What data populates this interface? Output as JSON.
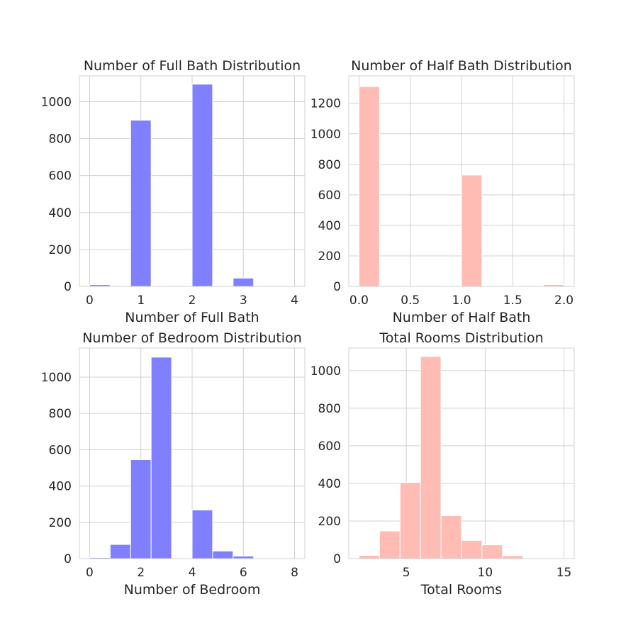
{
  "chart_data": [
    {
      "type": "bar",
      "title": "Number of Full Bath Distribution",
      "xlabel": "Number of Full Bath",
      "ylabel": "",
      "color": "#8080ff",
      "xlim": [
        -0.2,
        4.2
      ],
      "ylim": [
        0,
        1140
      ],
      "xticks": [
        0,
        1,
        2,
        3,
        4
      ],
      "xtick_labels": [
        "0",
        "1",
        "2",
        "3",
        "4"
      ],
      "yticks": [
        0,
        200,
        400,
        600,
        800,
        1000
      ],
      "ytick_labels": [
        "0",
        "200",
        "400",
        "600",
        "800",
        "1000"
      ],
      "bins": [
        [
          0,
          0.4
        ],
        [
          0.4,
          0.8
        ],
        [
          0.8,
          1.2
        ],
        [
          1.2,
          1.6
        ],
        [
          1.6,
          2.0
        ],
        [
          2.0,
          2.4
        ],
        [
          2.4,
          2.8
        ],
        [
          2.8,
          3.2
        ],
        [
          3.2,
          3.6
        ],
        [
          3.6,
          4.0
        ]
      ],
      "values": [
        9,
        0,
        900,
        0,
        0,
        1095,
        0,
        45,
        0,
        0
      ]
    },
    {
      "type": "bar",
      "title": "Number of Half Bath Distribution",
      "xlabel": "Number of Half Bath",
      "ylabel": "",
      "color": "#ffbcb5",
      "xlim": [
        -0.1,
        2.1
      ],
      "ylim": [
        0,
        1380
      ],
      "xticks": [
        0,
        0.5,
        1,
        1.5,
        2
      ],
      "xtick_labels": [
        "0.0",
        "0.5",
        "1.0",
        "1.5",
        "2.0"
      ],
      "yticks": [
        0,
        200,
        400,
        600,
        800,
        1000,
        1200
      ],
      "ytick_labels": [
        "0",
        "200",
        "400",
        "600",
        "800",
        "1000",
        "1200"
      ],
      "bins": [
        [
          0,
          0.2
        ],
        [
          0.2,
          0.4
        ],
        [
          0.4,
          0.6
        ],
        [
          0.6,
          0.8
        ],
        [
          0.8,
          1.0
        ],
        [
          1.0,
          1.2
        ],
        [
          1.2,
          1.4
        ],
        [
          1.4,
          1.6
        ],
        [
          1.6,
          1.8
        ],
        [
          1.8,
          2.0
        ]
      ],
      "values": [
        1310,
        0,
        0,
        0,
        0,
        730,
        0,
        0,
        0,
        12
      ]
    },
    {
      "type": "bar",
      "title": "Number of Bedroom Distribution",
      "xlabel": "Number of Bedroom",
      "ylabel": "",
      "color": "#8080ff",
      "xlim": [
        -0.4,
        8.4
      ],
      "ylim": [
        0,
        1160
      ],
      "xticks": [
        0,
        2,
        4,
        6,
        8
      ],
      "xtick_labels": [
        "0",
        "2",
        "4",
        "6",
        "8"
      ],
      "yticks": [
        0,
        200,
        400,
        600,
        800,
        1000
      ],
      "ytick_labels": [
        "0",
        "200",
        "400",
        "600",
        "800",
        "1000"
      ],
      "bins": [
        [
          0,
          0.8
        ],
        [
          0.8,
          1.6
        ],
        [
          1.6,
          2.4
        ],
        [
          2.4,
          3.2
        ],
        [
          3.2,
          4.0
        ],
        [
          4.0,
          4.8
        ],
        [
          4.8,
          5.6
        ],
        [
          5.6,
          6.4
        ],
        [
          6.4,
          7.2
        ],
        [
          7.2,
          8.0
        ]
      ],
      "values": [
        6,
        78,
        545,
        1110,
        0,
        268,
        42,
        14,
        0,
        1
      ]
    },
    {
      "type": "bar",
      "title": "Total Rooms Distribution",
      "xlabel": "Total Rooms",
      "ylabel": "",
      "color": "#ffbcb5",
      "xlim": [
        1.35,
        15.65
      ],
      "ylim": [
        0,
        1120
      ],
      "xticks": [
        5,
        10,
        15
      ],
      "xtick_labels": [
        "5",
        "10",
        "15"
      ],
      "yticks": [
        0,
        200,
        400,
        600,
        800,
        1000
      ],
      "ytick_labels": [
        "0",
        "200",
        "400",
        "600",
        "800",
        "1000"
      ],
      "bins": [
        [
          2,
          3.3
        ],
        [
          3.3,
          4.6
        ],
        [
          4.6,
          5.9
        ],
        [
          5.9,
          7.2
        ],
        [
          7.2,
          8.5
        ],
        [
          8.5,
          9.8
        ],
        [
          9.8,
          11.1
        ],
        [
          11.1,
          12.4
        ],
        [
          12.4,
          13.7
        ],
        [
          13.7,
          15.0
        ]
      ],
      "values": [
        17,
        147,
        405,
        1075,
        228,
        97,
        73,
        16,
        0,
        1
      ]
    }
  ]
}
